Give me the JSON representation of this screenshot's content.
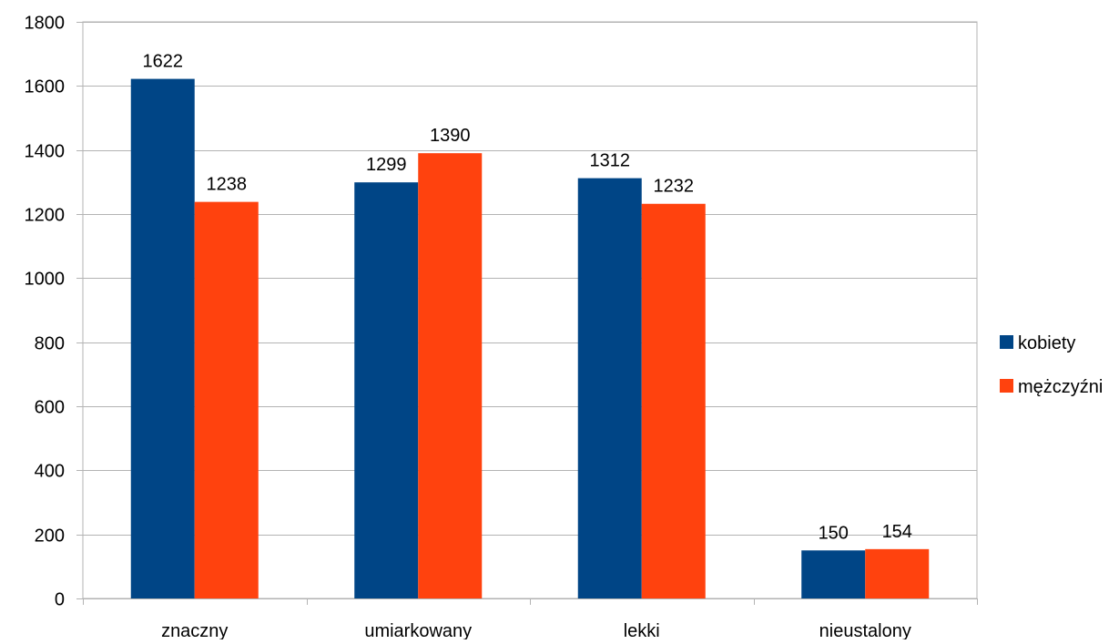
{
  "chart_data": {
    "type": "bar",
    "title": "",
    "xlabel": "",
    "ylabel": "",
    "categories": [
      "znaczny",
      "umiarkowany",
      "lekki",
      "nieustalony"
    ],
    "series": [
      {
        "name": "kobiety",
        "values": [
          1622,
          1299,
          1312,
          150
        ],
        "color": "#004586"
      },
      {
        "name": "mężczyźni",
        "values": [
          1238,
          1390,
          1232,
          154
        ],
        "color": "#ff420e"
      }
    ],
    "ylim": [
      0,
      1800
    ],
    "yticks": [
      0,
      200,
      400,
      600,
      800,
      1000,
      1200,
      1400,
      1600,
      1800
    ],
    "grid": true,
    "data_labels": true,
    "legend_position": "right"
  }
}
